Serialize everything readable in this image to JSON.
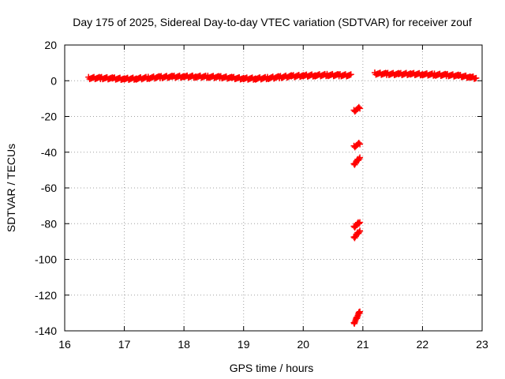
{
  "chart_data": {
    "type": "scatter",
    "title": "Day 175 of 2025, Sidereal Day-to-day VTEC variation (SDTVAR) for receiver zouf",
    "xlabel": "GPS time / hours",
    "ylabel": "SDTVAR / TECUs",
    "xlim": [
      16,
      23
    ],
    "ylim": [
      -140,
      20
    ],
    "xticks": [
      16,
      17,
      18,
      19,
      20,
      21,
      22,
      23
    ],
    "yticks": [
      20,
      0,
      -20,
      -40,
      -60,
      -80,
      -100,
      -120,
      -140
    ],
    "grid": true,
    "legend": "none",
    "series": [
      {
        "name": "Main band",
        "color": "#ff0000",
        "segments": [
          {
            "x": [
              16.4,
              16.6,
              16.8,
              17.0,
              17.2,
              17.4,
              17.6,
              17.8,
              18.0,
              18.2,
              18.4,
              18.6,
              18.8,
              19.0,
              19.2,
              19.4,
              19.6,
              19.8,
              20.0,
              20.2,
              20.4,
              20.6,
              20.8
            ],
            "y": [
              1.5,
              1.5,
              1.3,
              1.0,
              1.2,
              1.6,
              2.0,
              2.2,
              2.3,
              2.3,
              2.2,
              2.0,
              1.6,
              1.2,
              1.2,
              1.5,
              2.0,
              2.5,
              2.8,
              3.0,
              3.2,
              3.1,
              3.0
            ]
          },
          {
            "x": [
              21.2,
              21.4,
              21.6,
              21.8,
              22.0,
              22.2,
              22.4,
              22.6,
              22.8,
              22.9
            ],
            "y": [
              4.0,
              3.8,
              3.7,
              3.8,
              3.6,
              3.4,
              3.2,
              2.8,
              2.0,
              1.5
            ]
          }
        ]
      },
      {
        "name": "Outlier tracks",
        "color": "#ff0000",
        "segments": [
          {
            "x": [
              20.85,
              20.95
            ],
            "y": [
              -17,
              -15
            ]
          },
          {
            "x": [
              20.85,
              20.95
            ],
            "y": [
              -37,
              -35
            ]
          },
          {
            "x": [
              20.85,
              20.95
            ],
            "y": [
              -47,
              -43
            ]
          },
          {
            "x": [
              20.85,
              20.95
            ],
            "y": [
              -82,
              -79
            ]
          },
          {
            "x": [
              20.85,
              20.95
            ],
            "y": [
              -88,
              -84
            ]
          },
          {
            "x": [
              20.85,
              20.95
            ],
            "y": [
              -136,
              -129
            ]
          }
        ]
      }
    ]
  }
}
